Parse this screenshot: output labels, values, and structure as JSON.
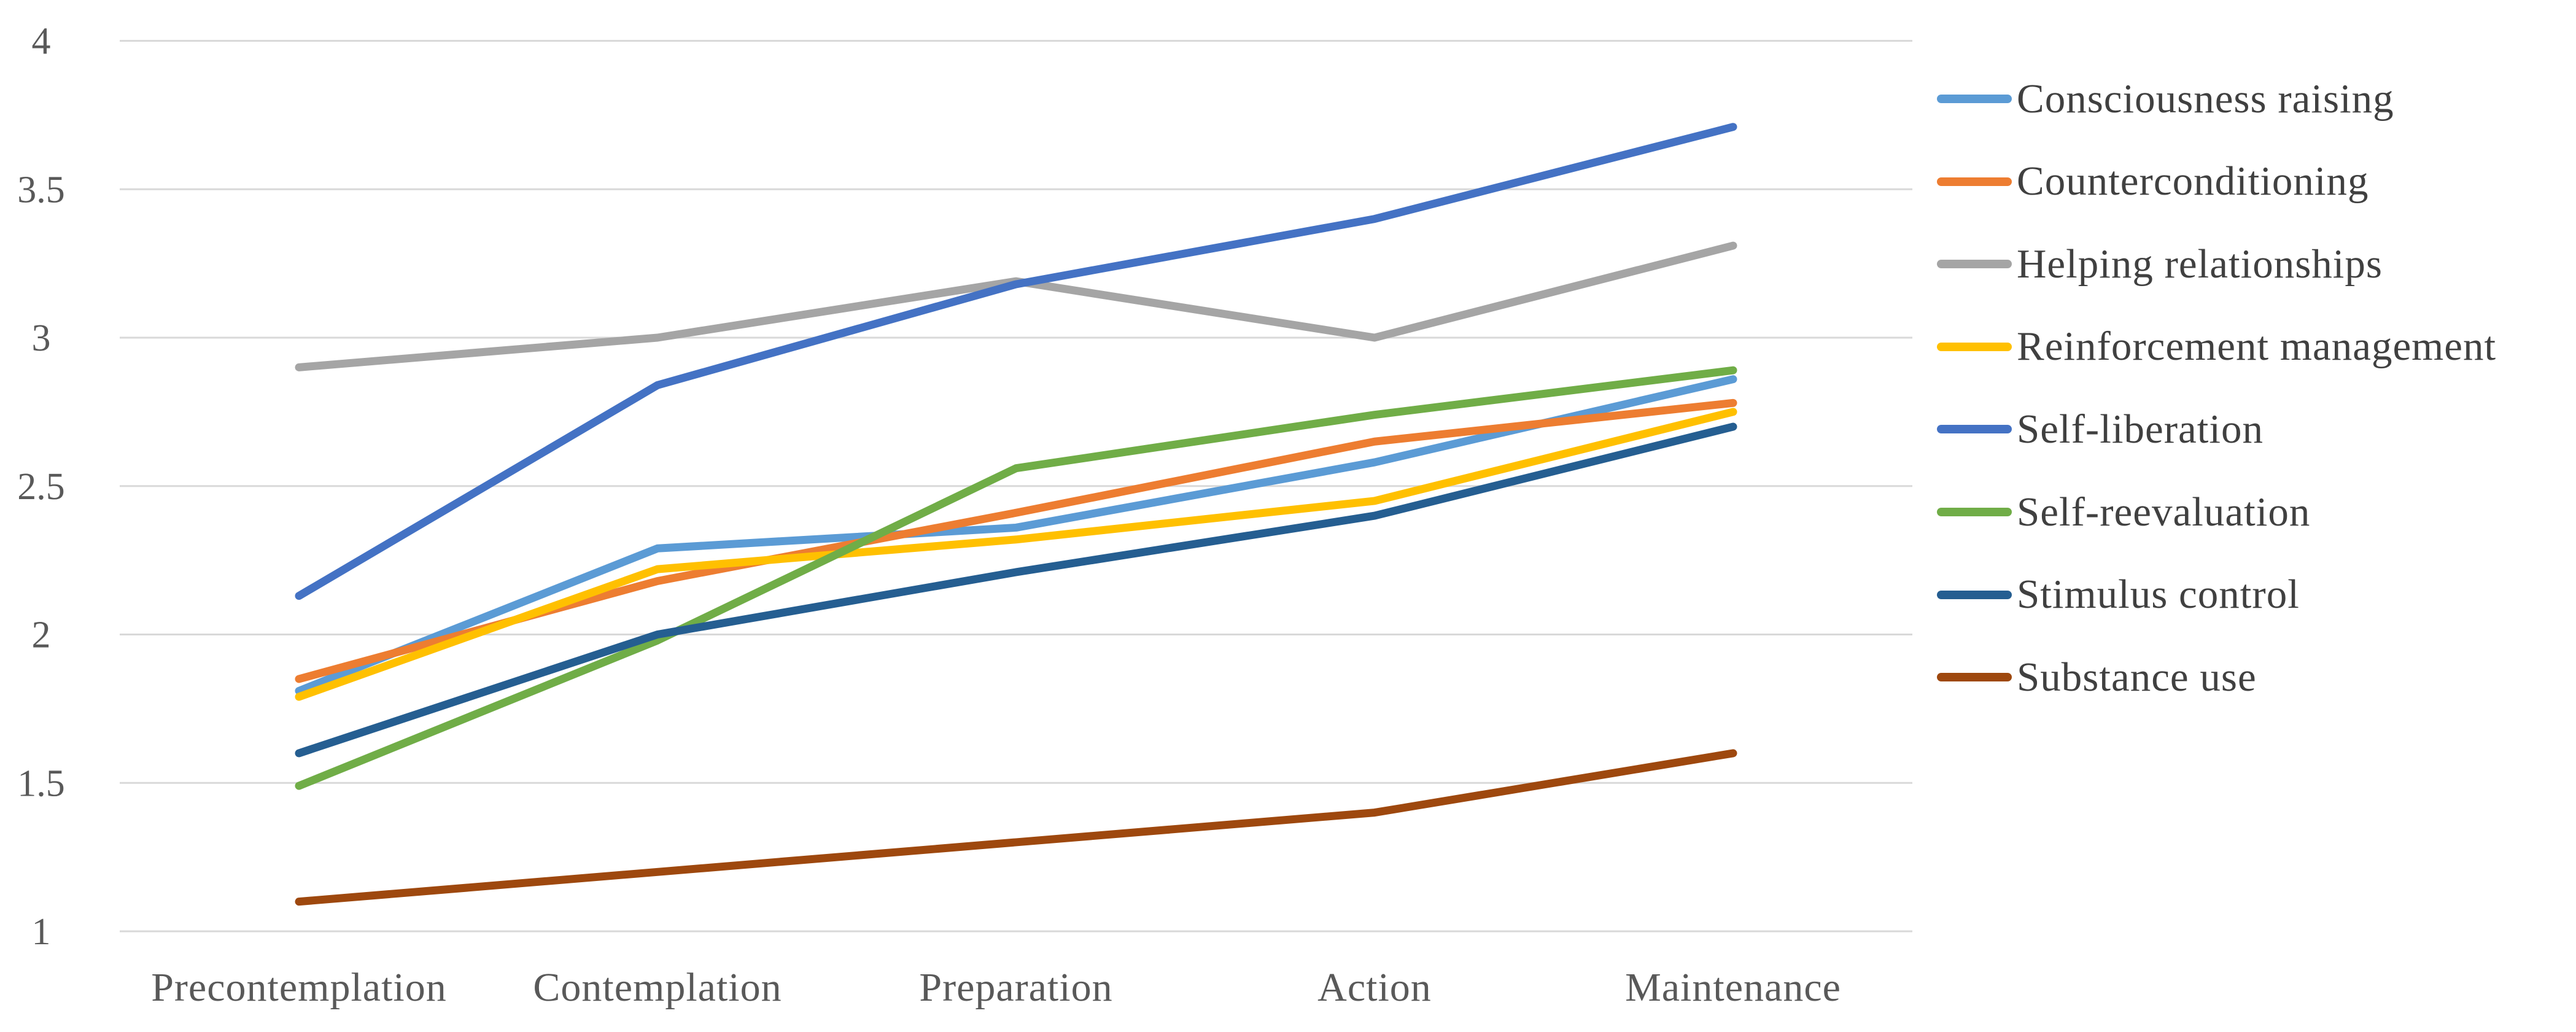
{
  "figure": {
    "background": "#FFFFFF",
    "gridline_color": "#D9D9D9",
    "axis_text_color": "#595959",
    "legend_text_color": "#404040"
  },
  "axis": {
    "y_tick_labels": [
      "4",
      "3.5",
      "3",
      "2.5",
      "2",
      "1.5",
      "1"
    ],
    "y_tick_values": [
      4,
      3.5,
      3,
      2.5,
      2,
      1.5,
      1
    ]
  },
  "chart_data": {
    "type": "line",
    "title": "",
    "xlabel": "",
    "ylabel": "",
    "ylim": [
      1,
      4
    ],
    "y_step": 0.5,
    "grid": "horizontal",
    "legend_position": "right",
    "categories": [
      "Precontemplation",
      "Contemplation",
      "Preparation",
      "Action",
      "Maintenance"
    ],
    "series": [
      {
        "name": "Consciousness raising",
        "color": "#5B9BD5",
        "values": [
          1.81,
          2.29,
          2.36,
          2.58,
          2.86
        ]
      },
      {
        "name": "Counterconditioning",
        "color": "#ED7D31",
        "values": [
          1.85,
          2.18,
          2.41,
          2.65,
          2.78
        ]
      },
      {
        "name": "Helping relationships",
        "color": "#A5A5A5",
        "values": [
          2.9,
          3.0,
          3.19,
          3.0,
          3.31
        ]
      },
      {
        "name": "Reinforcement management",
        "color": "#FFC000",
        "values": [
          1.79,
          2.22,
          2.32,
          2.45,
          2.75
        ]
      },
      {
        "name": "Self-liberation",
        "color": "#4472C4",
        "values": [
          2.13,
          2.84,
          3.18,
          3.4,
          3.71
        ]
      },
      {
        "name": "Self-reevaluation",
        "color": "#70AD47",
        "values": [
          1.49,
          1.98,
          2.56,
          2.74,
          2.89
        ]
      },
      {
        "name": "Stimulus control",
        "color": "#255E91",
        "values": [
          1.6,
          2.0,
          2.21,
          2.4,
          2.7
        ]
      },
      {
        "name": "Substance use",
        "color": "#9E480E",
        "values": [
          1.1,
          1.2,
          1.3,
          1.4,
          1.6
        ]
      }
    ]
  }
}
